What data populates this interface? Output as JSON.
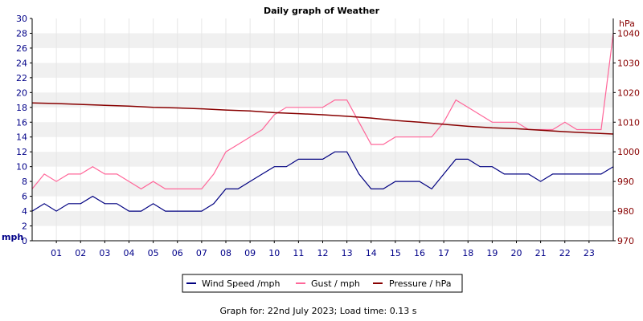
{
  "chart_data": {
    "type": "line",
    "title": "Daily graph of Weather",
    "left_axis": {
      "unit": "mph",
      "range": [
        0,
        30
      ],
      "ticks": [
        0,
        2,
        4,
        6,
        8,
        10,
        12,
        14,
        16,
        18,
        20,
        22,
        24,
        26,
        28,
        30
      ]
    },
    "right_axis": {
      "unit": "hPa",
      "range": [
        970,
        1045
      ],
      "ticks": [
        970,
        980,
        990,
        1000,
        1010,
        1020,
        1030,
        1040
      ]
    },
    "x_axis": {
      "range": [
        0,
        24
      ],
      "tick_labels": [
        "01",
        "02",
        "03",
        "04",
        "05",
        "06",
        "07",
        "08",
        "09",
        "10",
        "11",
        "12",
        "13",
        "14",
        "15",
        "16",
        "17",
        "18",
        "19",
        "20",
        "21",
        "22",
        "23"
      ]
    },
    "grid": "horizontal bands",
    "legend_position": "bottom-center",
    "series": [
      {
        "name": "Wind Speed /mph",
        "axis": "left",
        "color": "#000080",
        "x": [
          0,
          0.5,
          1,
          1.5,
          2,
          2.5,
          3,
          3.5,
          4,
          4.5,
          5,
          5.5,
          6,
          6.5,
          7,
          7.5,
          8,
          8.5,
          9,
          9.5,
          10,
          10.5,
          11,
          11.5,
          12,
          12.5,
          13,
          13.5,
          14,
          14.5,
          15,
          15.5,
          16,
          16.5,
          17,
          17.5,
          18,
          18.5,
          19,
          19.5,
          20,
          20.5,
          21,
          21.5,
          22,
          22.5,
          23,
          23.5,
          24
        ],
        "values": [
          4,
          5,
          4,
          5,
          5,
          6,
          5,
          5,
          4,
          4,
          5,
          4,
          4,
          4,
          4,
          5,
          7,
          7,
          8,
          9,
          10,
          10,
          11,
          11,
          11,
          12,
          12,
          9,
          7,
          7,
          8,
          8,
          8,
          7,
          9,
          11,
          11,
          10,
          10,
          9,
          9,
          9,
          8,
          9,
          9,
          9,
          9,
          9,
          10
        ]
      },
      {
        "name": "Gust / mph",
        "axis": "left",
        "color": "#ff6699",
        "x": [
          0,
          0.5,
          1,
          1.5,
          2,
          2.5,
          3,
          3.5,
          4,
          4.5,
          5,
          5.5,
          6,
          6.5,
          7,
          7.5,
          8,
          8.5,
          9,
          9.5,
          10,
          10.5,
          11,
          11.5,
          12,
          12.5,
          13,
          13.5,
          14,
          14.5,
          15,
          15.5,
          16,
          16.5,
          17,
          17.5,
          18,
          18.5,
          19,
          19.5,
          20,
          20.5,
          21,
          21.5,
          22,
          22.5,
          23,
          23.5,
          24
        ],
        "values": [
          7,
          9,
          8,
          9,
          9,
          10,
          9,
          9,
          8,
          7,
          8,
          7,
          7,
          7,
          7,
          9,
          12,
          13,
          14,
          15,
          17,
          18,
          18,
          18,
          18,
          19,
          19,
          16,
          13,
          13,
          14,
          14,
          14,
          14,
          16,
          19,
          18,
          17,
          16,
          16,
          16,
          15,
          15,
          15,
          16,
          15,
          15,
          15,
          28
        ]
      },
      {
        "name": "Pressure / hPa",
        "axis": "right",
        "color": "#880000",
        "x": [
          0,
          1,
          2,
          3,
          4,
          5,
          6,
          7,
          8,
          9,
          10,
          11,
          12,
          13,
          14,
          15,
          16,
          17,
          18,
          19,
          20,
          21,
          22,
          23,
          24
        ],
        "values": [
          1016.5,
          1016.3,
          1016.0,
          1015.7,
          1015.4,
          1015.0,
          1014.8,
          1014.5,
          1014.1,
          1013.8,
          1013.2,
          1012.9,
          1012.5,
          1012.0,
          1011.4,
          1010.6,
          1010.0,
          1009.3,
          1008.6,
          1008.1,
          1007.8,
          1007.3,
          1006.8,
          1006.4,
          1006.0
        ]
      }
    ]
  },
  "footer": {
    "text": "Graph for: 22nd July 2023; Load time: 0.13 s"
  }
}
